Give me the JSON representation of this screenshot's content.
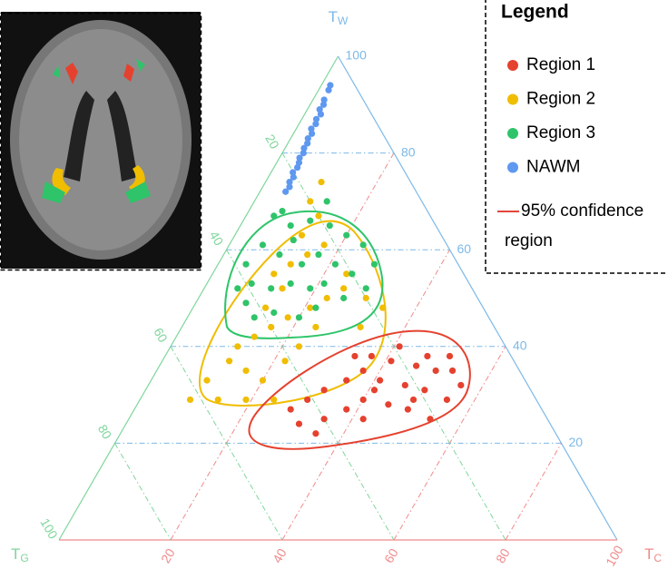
{
  "chart_data": {
    "type": "ternary",
    "grid": true,
    "axes": {
      "w": {
        "letter": "T",
        "sub": "W",
        "color": "#7db9e8",
        "ticks": [
          20,
          40,
          60,
          80,
          100
        ]
      },
      "c": {
        "letter": "T",
        "sub": "C",
        "color": "#f08a8a",
        "ticks": [
          20,
          40,
          60,
          80,
          100
        ]
      },
      "g": {
        "letter": "T",
        "sub": "G",
        "color": "#7ed69a",
        "ticks": [
          20,
          40,
          60,
          80,
          100
        ]
      }
    },
    "legend": {
      "title": "Legend",
      "position": "upper right",
      "ci_label": [
        "95% confidence",
        "region"
      ],
      "ci_color": "#e0473c"
    },
    "series": [
      {
        "name": "Region 1",
        "color": "#e5412f",
        "tw": [
          40,
          38,
          38,
          35,
          35,
          36,
          37,
          38,
          35,
          33,
          32,
          31,
          29,
          32,
          33,
          31,
          29,
          27,
          24,
          25,
          27,
          29,
          28,
          27,
          25,
          22,
          25,
          31,
          38,
          29
        ],
        "tc": [
          41,
          47,
          51,
          53,
          50,
          46,
          41,
          37,
          37,
          41,
          46,
          50,
          55,
          56,
          35,
          32,
          30,
          28,
          31,
          35,
          38,
          40,
          45,
          49,
          54,
          35,
          42,
          41,
          34,
          49
        ],
        "tg": [
          19,
          15,
          11,
          12,
          15,
          18,
          22,
          25,
          28,
          26,
          22,
          19,
          16,
          12,
          32,
          37,
          41,
          45,
          45,
          40,
          35,
          31,
          27,
          24,
          21,
          43,
          33,
          28,
          28,
          22
        ]
      },
      {
        "name": "Region 2",
        "color": "#f0bd00",
        "tw": [
          29,
          33,
          37,
          35,
          33,
          29,
          40,
          42,
          44,
          46,
          48,
          50,
          52,
          50,
          48,
          55,
          57,
          59,
          61,
          55,
          63,
          67,
          70,
          74,
          52,
          48,
          40,
          37,
          44,
          44,
          29,
          29
        ],
        "tc": [
          9,
          10,
          12,
          16,
          20,
          24,
          12,
          14,
          16,
          18,
          21,
          23,
          25,
          30,
          34,
          11,
          13,
          15,
          17,
          24,
          12,
          13,
          10,
          10,
          14,
          13,
          23,
          22,
          24,
          32,
          19,
          14
        ],
        "tg": [
          62,
          57,
          51,
          49,
          47,
          47,
          48,
          44,
          40,
          36,
          31,
          27,
          23,
          20,
          18,
          34,
          30,
          26,
          22,
          21,
          25,
          20,
          20,
          16,
          34,
          39,
          37,
          41,
          32,
          24,
          52,
          57
        ]
      },
      {
        "name": "Region 3",
        "color": "#2fc46a",
        "tw": [
          67,
          65,
          66,
          65,
          63,
          61,
          57,
          55,
          57,
          59,
          57,
          59,
          61,
          57,
          52,
          53,
          52,
          53,
          52,
          53,
          50,
          48,
          46,
          47,
          46,
          49,
          68,
          70,
          52,
          62
        ],
        "tc": [
          5,
          9,
          12,
          16,
          20,
          24,
          28,
          25,
          21,
          17,
          15,
          10,
          6,
          5,
          6,
          8,
          12,
          15,
          19,
          21,
          26,
          22,
          20,
          15,
          12,
          9,
          6,
          13,
          29,
          11
        ],
        "tg": [
          28,
          26,
          22,
          19,
          17,
          15,
          15,
          20,
          22,
          24,
          28,
          31,
          33,
          38,
          42,
          39,
          36,
          32,
          29,
          26,
          24,
          30,
          34,
          38,
          42,
          42,
          26,
          17,
          19,
          27
        ]
      },
      {
        "name": "NAWM",
        "color": "#5e98f0",
        "tw": [
          94,
          93,
          91,
          90,
          89,
          88,
          87,
          86,
          85,
          84,
          83,
          82,
          81,
          80,
          79,
          78,
          77,
          76,
          75,
          74,
          73,
          72
        ],
        "tc": [
          1.6,
          1.8,
          2.0,
          2.4,
          2.2,
          2.9,
          2.6,
          3.0,
          2.7,
          3.3,
          3.1,
          3.5,
          3.4,
          3.8,
          3.6,
          4.0,
          4.2,
          3.9,
          4.5,
          4.3,
          4.8,
          4.6
        ],
        "tg": [
          4.4,
          5.2,
          7.0,
          7.6,
          8.8,
          9.1,
          10.4,
          11.0,
          12.3,
          12.7,
          13.9,
          14.5,
          15.6,
          16.2,
          17.4,
          18.0,
          18.8,
          20.1,
          20.5,
          21.7,
          22.2,
          23.4
        ]
      }
    ]
  }
}
